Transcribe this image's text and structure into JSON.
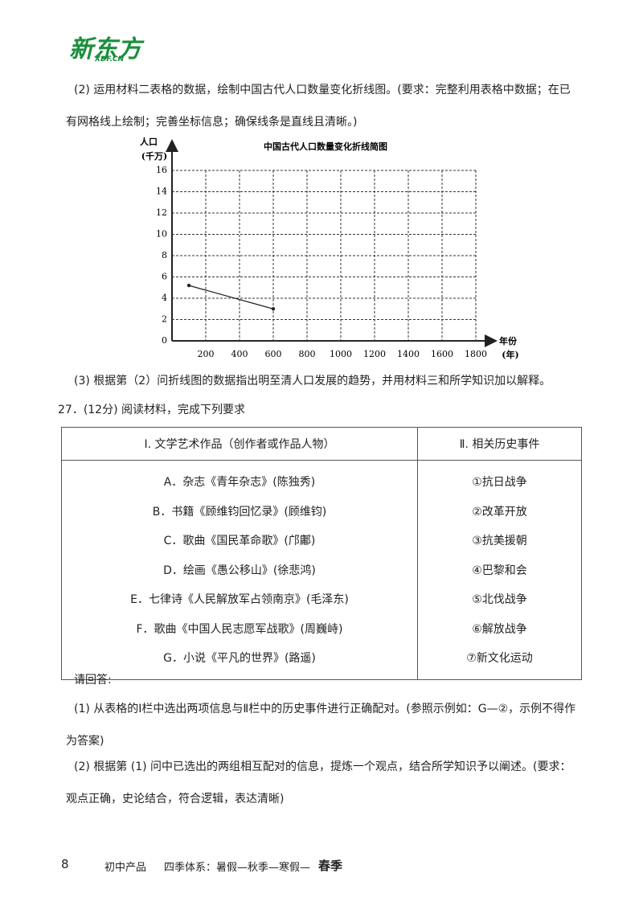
{
  "logo": {
    "name": "新东方",
    "url": "XDF.CN"
  },
  "paragraphs": [
    "(2) 运用材料二表格的数据，绘制中国古代人口数量变化折线图。(要求：完整利用表格中数据；在已有网格线上绘制；完善坐标信息；确保线条是直线且清晰。)",
    "(3) 根据第（2）问折线图的数据指出明至清人口发展的趋势，并用材料三和所学知识加以解释。",
    "27．(12分) 阅读材料，完成下列要求"
  ],
  "chart_data": {
    "type": "line",
    "title": "中国古代人口数量变化折线简图",
    "y_label": "人口",
    "y_unit": "(千万)",
    "x_label": "年份",
    "x_unit": "(年)",
    "x": [
      100,
      600
    ],
    "values": [
      5.2,
      3.0
    ],
    "color": "#222222",
    "grid": true,
    "xlim": [
      0,
      1800
    ],
    "ylim": [
      0,
      16
    ],
    "xticks": [
      200,
      400,
      600,
      800,
      1000,
      1200,
      1400,
      1600,
      1800
    ],
    "yticks": [
      0,
      2,
      4,
      6,
      8,
      10,
      12,
      14,
      16
    ]
  },
  "table": {
    "header": [
      "Ⅰ. 文学艺术作品（创作者或作品人物）",
      "Ⅱ. 相关历史事件"
    ],
    "rows": [
      [
        "A．杂志《青年杂志》(陈独秀)",
        "①抗日战争"
      ],
      [
        "B．书籍《顾维钧回忆录》(顾维钧)",
        "②改革开放"
      ],
      [
        "C．歌曲《国民革命歌》(邝鄘)",
        "③抗美援朝"
      ],
      [
        "D．绘画《愚公移山》(徐悲鸿)",
        "④巴黎和会"
      ],
      [
        "E．七律诗《人民解放军占领南京》(毛泽东)",
        "⑤北伐战争"
      ],
      [
        "F．歌曲《中国人民志愿军战歌》(周巍峙)",
        "⑥解放战争"
      ],
      [
        "G．小说《平凡的世界》(路遥)",
        "⑦新文化运动"
      ]
    ]
  },
  "questions": [
    "请回答:",
    "(1) 从表格的Ⅰ栏中选出两项信息与Ⅱ栏中的历史事件进行正确配对。(参照示例如：G—②，示例不得作为答案)",
    "(2) 根据第 (1) 问中已选出的两组相互配对的信息，提炼一个观点，结合所学知识予以阐述。(要求：观点正确，史论结合，符合逻辑，表达清晰)"
  ],
  "footer": {
    "page": "8",
    "product": "初中产品",
    "system": "四季体系：暑假—秋季—寒假—",
    "highlight": "春季"
  }
}
